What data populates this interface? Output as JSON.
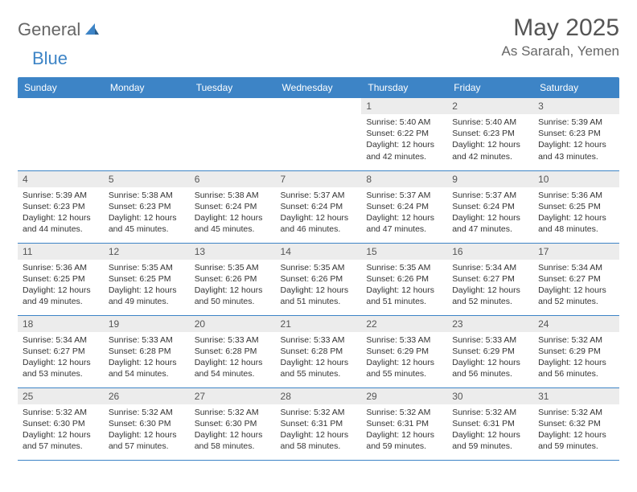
{
  "logo": {
    "word1": "General",
    "word2": "Blue"
  },
  "title": "May 2025",
  "location": "As Sararah, Yemen",
  "colors": {
    "header_bg": "#3d84c6",
    "header_text": "#ffffff",
    "daynum_bg": "#ececec",
    "daynum_text": "#555555",
    "body_text": "#333333",
    "rule": "#3d84c6",
    "title_text": "#555555",
    "location_text": "#666666",
    "logo_gray": "#666666",
    "logo_blue": "#3d84c6"
  },
  "weekdays": [
    "Sunday",
    "Monday",
    "Tuesday",
    "Wednesday",
    "Thursday",
    "Friday",
    "Saturday"
  ],
  "weeks": [
    [
      null,
      null,
      null,
      null,
      {
        "n": "1",
        "sr": "5:40 AM",
        "ss": "6:22 PM",
        "dl": "12 hours and 42 minutes."
      },
      {
        "n": "2",
        "sr": "5:40 AM",
        "ss": "6:23 PM",
        "dl": "12 hours and 42 minutes."
      },
      {
        "n": "3",
        "sr": "5:39 AM",
        "ss": "6:23 PM",
        "dl": "12 hours and 43 minutes."
      }
    ],
    [
      {
        "n": "4",
        "sr": "5:39 AM",
        "ss": "6:23 PM",
        "dl": "12 hours and 44 minutes."
      },
      {
        "n": "5",
        "sr": "5:38 AM",
        "ss": "6:23 PM",
        "dl": "12 hours and 45 minutes."
      },
      {
        "n": "6",
        "sr": "5:38 AM",
        "ss": "6:24 PM",
        "dl": "12 hours and 45 minutes."
      },
      {
        "n": "7",
        "sr": "5:37 AM",
        "ss": "6:24 PM",
        "dl": "12 hours and 46 minutes."
      },
      {
        "n": "8",
        "sr": "5:37 AM",
        "ss": "6:24 PM",
        "dl": "12 hours and 47 minutes."
      },
      {
        "n": "9",
        "sr": "5:37 AM",
        "ss": "6:24 PM",
        "dl": "12 hours and 47 minutes."
      },
      {
        "n": "10",
        "sr": "5:36 AM",
        "ss": "6:25 PM",
        "dl": "12 hours and 48 minutes."
      }
    ],
    [
      {
        "n": "11",
        "sr": "5:36 AM",
        "ss": "6:25 PM",
        "dl": "12 hours and 49 minutes."
      },
      {
        "n": "12",
        "sr": "5:35 AM",
        "ss": "6:25 PM",
        "dl": "12 hours and 49 minutes."
      },
      {
        "n": "13",
        "sr": "5:35 AM",
        "ss": "6:26 PM",
        "dl": "12 hours and 50 minutes."
      },
      {
        "n": "14",
        "sr": "5:35 AM",
        "ss": "6:26 PM",
        "dl": "12 hours and 51 minutes."
      },
      {
        "n": "15",
        "sr": "5:35 AM",
        "ss": "6:26 PM",
        "dl": "12 hours and 51 minutes."
      },
      {
        "n": "16",
        "sr": "5:34 AM",
        "ss": "6:27 PM",
        "dl": "12 hours and 52 minutes."
      },
      {
        "n": "17",
        "sr": "5:34 AM",
        "ss": "6:27 PM",
        "dl": "12 hours and 52 minutes."
      }
    ],
    [
      {
        "n": "18",
        "sr": "5:34 AM",
        "ss": "6:27 PM",
        "dl": "12 hours and 53 minutes."
      },
      {
        "n": "19",
        "sr": "5:33 AM",
        "ss": "6:28 PM",
        "dl": "12 hours and 54 minutes."
      },
      {
        "n": "20",
        "sr": "5:33 AM",
        "ss": "6:28 PM",
        "dl": "12 hours and 54 minutes."
      },
      {
        "n": "21",
        "sr": "5:33 AM",
        "ss": "6:28 PM",
        "dl": "12 hours and 55 minutes."
      },
      {
        "n": "22",
        "sr": "5:33 AM",
        "ss": "6:29 PM",
        "dl": "12 hours and 55 minutes."
      },
      {
        "n": "23",
        "sr": "5:33 AM",
        "ss": "6:29 PM",
        "dl": "12 hours and 56 minutes."
      },
      {
        "n": "24",
        "sr": "5:32 AM",
        "ss": "6:29 PM",
        "dl": "12 hours and 56 minutes."
      }
    ],
    [
      {
        "n": "25",
        "sr": "5:32 AM",
        "ss": "6:30 PM",
        "dl": "12 hours and 57 minutes."
      },
      {
        "n": "26",
        "sr": "5:32 AM",
        "ss": "6:30 PM",
        "dl": "12 hours and 57 minutes."
      },
      {
        "n": "27",
        "sr": "5:32 AM",
        "ss": "6:30 PM",
        "dl": "12 hours and 58 minutes."
      },
      {
        "n": "28",
        "sr": "5:32 AM",
        "ss": "6:31 PM",
        "dl": "12 hours and 58 minutes."
      },
      {
        "n": "29",
        "sr": "5:32 AM",
        "ss": "6:31 PM",
        "dl": "12 hours and 59 minutes."
      },
      {
        "n": "30",
        "sr": "5:32 AM",
        "ss": "6:31 PM",
        "dl": "12 hours and 59 minutes."
      },
      {
        "n": "31",
        "sr": "5:32 AM",
        "ss": "6:32 PM",
        "dl": "12 hours and 59 minutes."
      }
    ]
  ],
  "labels": {
    "sunrise": "Sunrise:",
    "sunset": "Sunset:",
    "daylight": "Daylight:"
  }
}
